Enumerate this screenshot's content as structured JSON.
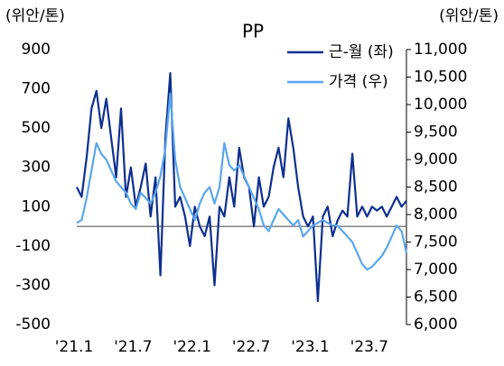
{
  "chart_data": {
    "type": "line",
    "title": "PP",
    "y_label": "(위안/톤)",
    "y2_label": "(위안/톤)",
    "categories": [
      "'21.1",
      null,
      null,
      null,
      null,
      null,
      null,
      null,
      null,
      null,
      null,
      null,
      "'21.7",
      null,
      null,
      null,
      null,
      null,
      null,
      null,
      null,
      null,
      null,
      null,
      "'22.1",
      null,
      null,
      null,
      null,
      null,
      null,
      null,
      null,
      null,
      null,
      null,
      "'22.7",
      null,
      null,
      null,
      null,
      null,
      null,
      null,
      null,
      null,
      null,
      null,
      "'23.1",
      null,
      null,
      null,
      null,
      null,
      null,
      null,
      null,
      null,
      null,
      null,
      "'23.7",
      null,
      null,
      null,
      null,
      null,
      null,
      null
    ],
    "series": [
      {
        "name": "근-월 (좌)",
        "color": "#0d2f8f",
        "axis": "y",
        "values": [
          200,
          150,
          350,
          600,
          690,
          500,
          650,
          450,
          250,
          600,
          150,
          300,
          100,
          200,
          320,
          50,
          250,
          -250,
          450,
          780,
          100,
          150,
          50,
          -100,
          100,
          0,
          -50,
          50,
          -300,
          100,
          50,
          250,
          100,
          400,
          250,
          200,
          0,
          250,
          100,
          150,
          300,
          400,
          250,
          550,
          400,
          200,
          50,
          0,
          50,
          -380,
          50,
          100,
          -50,
          30,
          80,
          50,
          370,
          50,
          100,
          50,
          100,
          80,
          100,
          50,
          100,
          150,
          100,
          130
        ]
      },
      {
        "name": "가격 (우)",
        "color": "#5aa6f0",
        "axis": "y2",
        "values": [
          7850,
          7900,
          8300,
          8800,
          9300,
          9100,
          9000,
          8800,
          8600,
          8500,
          8400,
          8200,
          8100,
          8400,
          8300,
          8200,
          8400,
          8700,
          9200,
          10200,
          9000,
          8500,
          8300,
          8100,
          7900,
          8200,
          8400,
          8500,
          8200,
          8500,
          9300,
          8900,
          8800,
          8900,
          8700,
          8500,
          8300,
          8100,
          7800,
          7700,
          7900,
          8100,
          8000,
          7900,
          7800,
          7900,
          7600,
          7700,
          7800,
          7850,
          7900,
          7850,
          7800,
          7800,
          7700,
          7600,
          7500,
          7300,
          7100,
          7000,
          7050,
          7150,
          7250,
          7400,
          7600,
          7800,
          7700,
          7300
        ]
      }
    ],
    "ylim": [
      -500,
      900
    ],
    "yticks": [
      -500,
      -300,
      -100,
      100,
      300,
      500,
      700,
      900
    ],
    "y2lim": [
      6000,
      11000
    ],
    "y2ticks": [
      {
        "value": 6000,
        "label": "6,000"
      },
      {
        "value": 6500,
        "label": "6,500"
      },
      {
        "value": 7000,
        "label": "7,000"
      },
      {
        "value": 7500,
        "label": "7,500"
      },
      {
        "value": 8000,
        "label": "8,000"
      },
      {
        "value": 8500,
        "label": "8,500"
      },
      {
        "value": 9000,
        "label": "9,000"
      },
      {
        "value": 9500,
        "label": "9,500"
      },
      {
        "value": 10000,
        "label": "10,000"
      },
      {
        "value": 10500,
        "label": "10,500"
      },
      {
        "value": 11000,
        "label": "11,000"
      }
    ],
    "legend": "top-right"
  }
}
